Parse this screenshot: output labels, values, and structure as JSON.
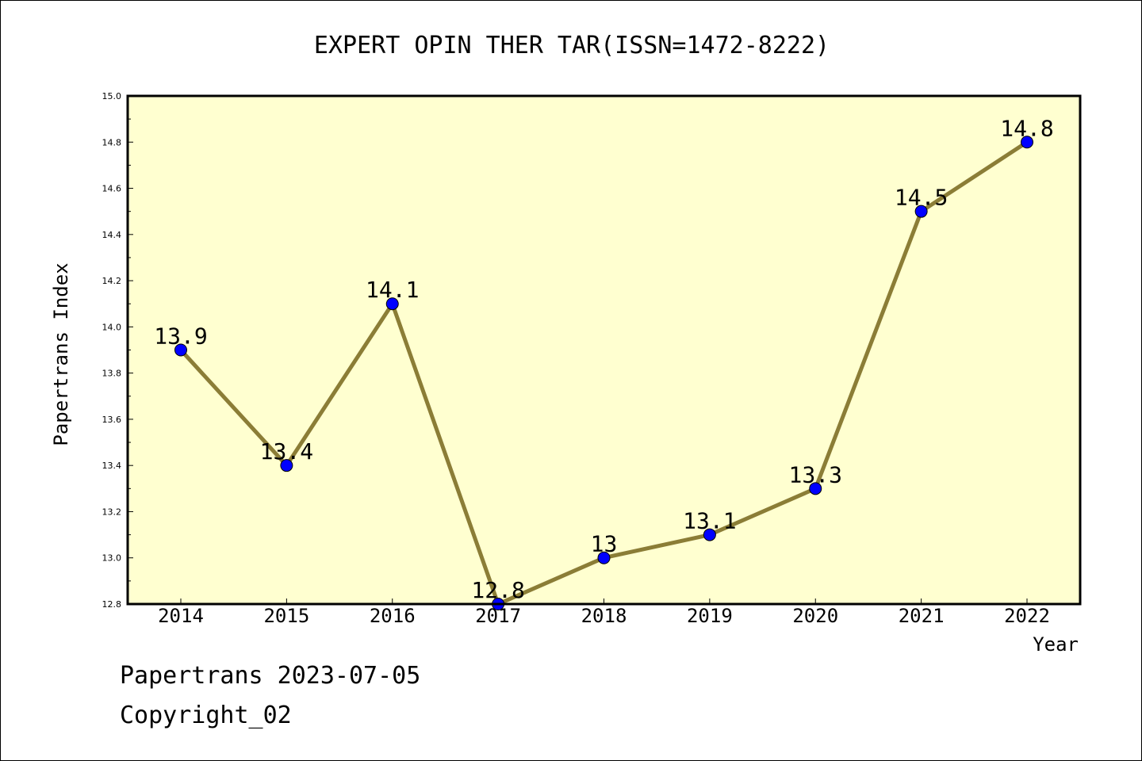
{
  "chart_data": {
    "type": "line",
    "title": "EXPERT OPIN THER TAR(ISSN=1472-8222)",
    "xlabel": "Year",
    "ylabel": "Papertrans Index",
    "categories": [
      "2014",
      "2015",
      "2016",
      "2017",
      "2018",
      "2019",
      "2020",
      "2021",
      "2022"
    ],
    "values": [
      13.9,
      13.4,
      14.1,
      12.8,
      13.0,
      13.1,
      13.3,
      14.5,
      14.8
    ],
    "data_labels": [
      "13.9",
      "13.4",
      "14.1",
      "12.8",
      "13",
      "13.1",
      "13.3",
      "14.5",
      "14.8"
    ],
    "ylim": [
      12.8,
      15.0
    ],
    "yticks": [
      "12.8",
      "13.0",
      "13.2",
      "13.4",
      "13.6",
      "13.8",
      "14.0",
      "14.2",
      "14.4",
      "14.6",
      "14.8",
      "15.0"
    ],
    "grid": false,
    "legend": "none",
    "colors": {
      "plot_background": "#ffffd0",
      "line": "#8b7d36",
      "marker": "#0000ff"
    }
  },
  "footer": {
    "line1": "Papertrans 2023-07-05",
    "line2": "Copyright_02"
  }
}
